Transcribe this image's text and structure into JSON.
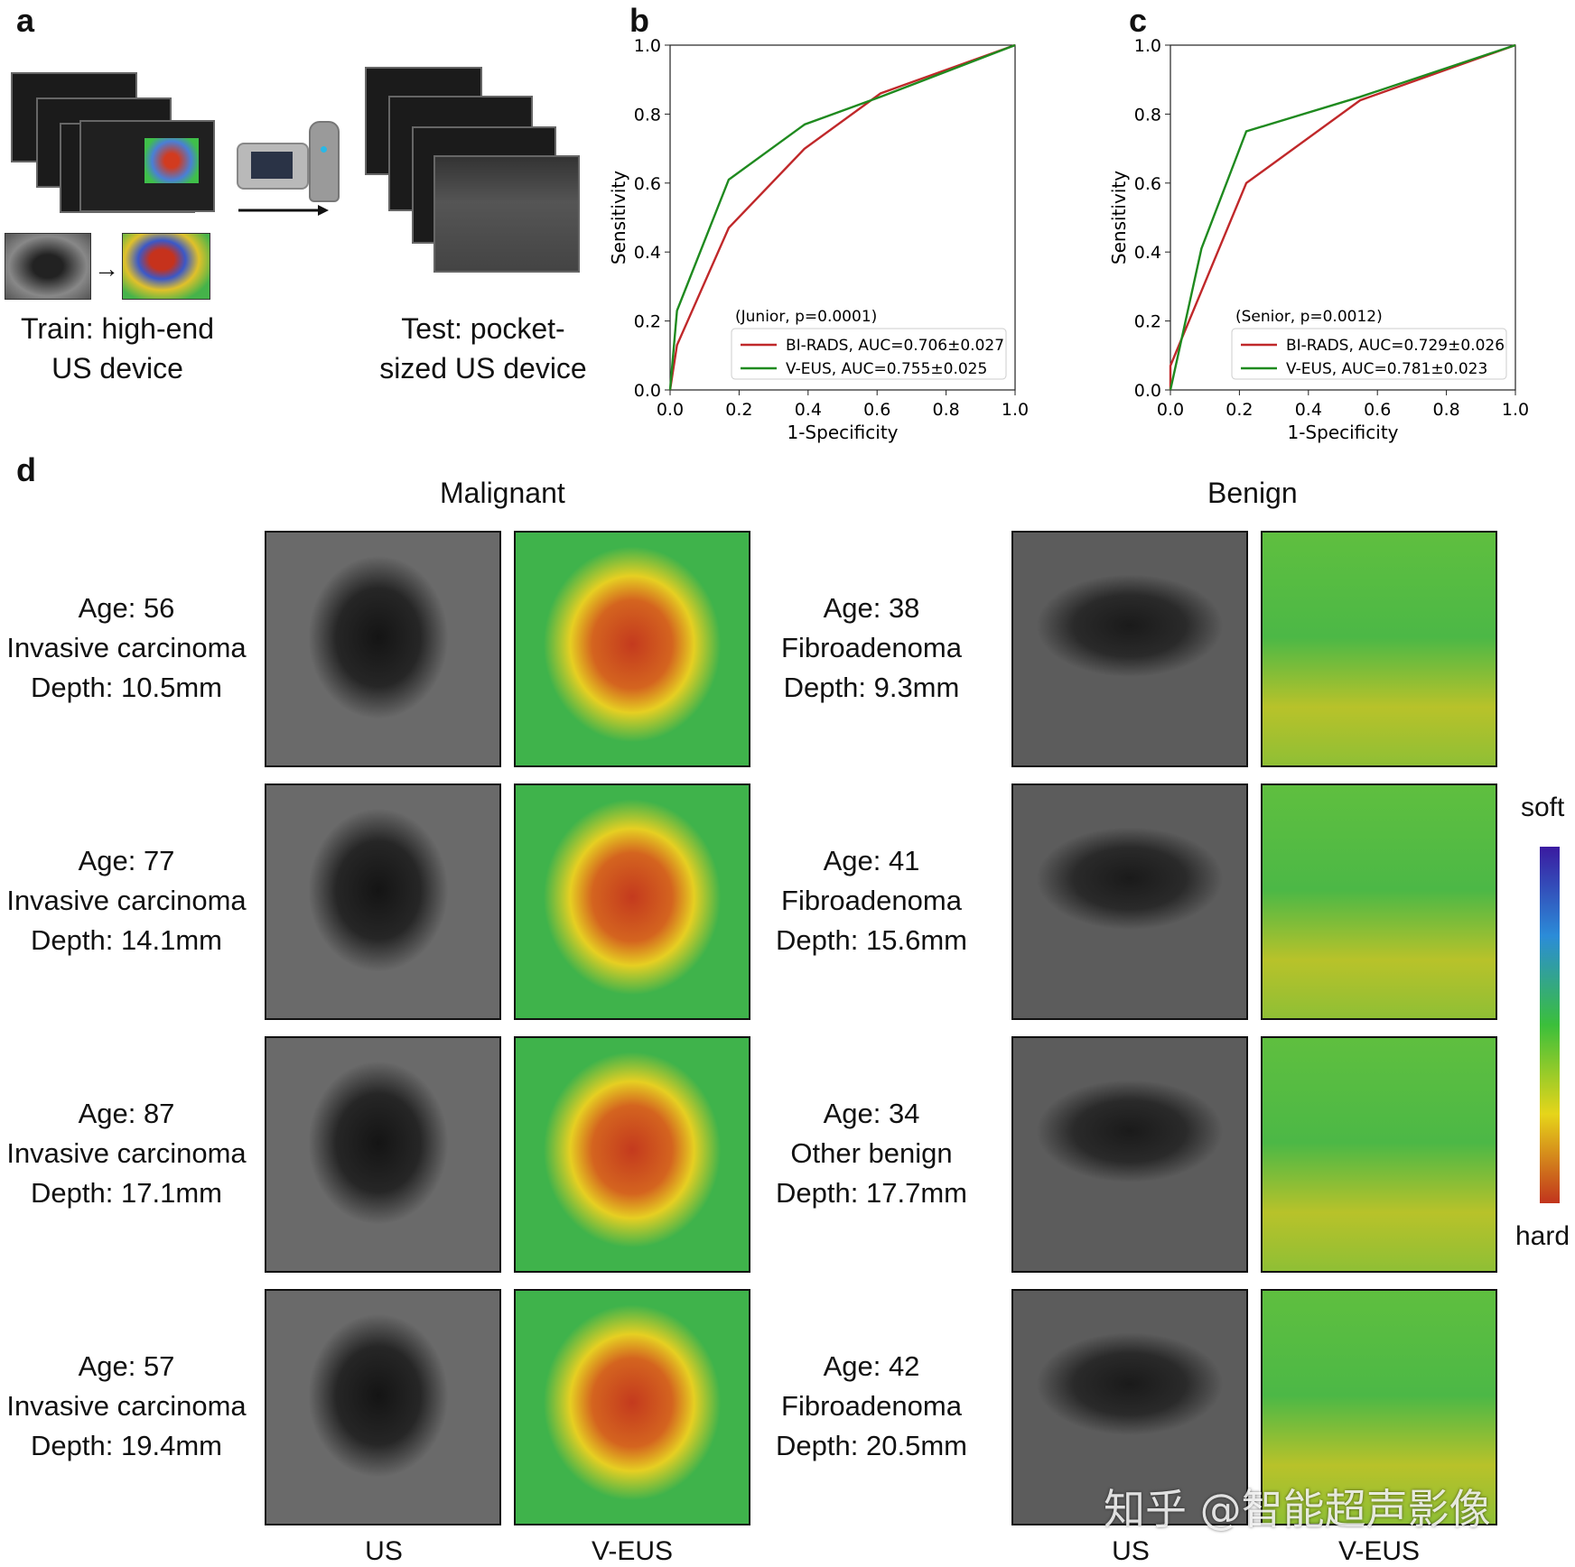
{
  "panels": {
    "a": {
      "letter": "a",
      "train_caption_1": "Train: high-end",
      "train_caption_2": "US device",
      "test_caption_1": "Test: pocket-",
      "test_caption_2": "sized US device",
      "arrow_icon": "right-arrow-icon",
      "device_icon": "handheld-probe-icon"
    },
    "b": {
      "letter": "b"
    },
    "c": {
      "letter": "c"
    },
    "d": {
      "letter": "d",
      "malignant_title": "Malignant",
      "benign_title": "Benign",
      "col_us": "US",
      "col_veus": "V-EUS",
      "colorbar_top": "soft",
      "colorbar_bottom": "hard",
      "colorbar_colors": [
        "#3a1aa0",
        "#2b8cd8",
        "#3bbf3b",
        "#e6d51a",
        "#c1341d"
      ],
      "malignant_cases": [
        {
          "age": "Age: 56",
          "diagnosis": "Invasive carcinoma",
          "depth": "Depth: 10.5mm"
        },
        {
          "age": "Age: 77",
          "diagnosis": "Invasive carcinoma",
          "depth": "Depth: 14.1mm"
        },
        {
          "age": "Age: 87",
          "diagnosis": "Invasive carcinoma",
          "depth": "Depth: 17.1mm"
        },
        {
          "age": "Age: 57",
          "diagnosis": "Invasive carcinoma",
          "depth": "Depth: 19.4mm"
        }
      ],
      "benign_cases": [
        {
          "age": "Age: 38",
          "diagnosis": "Fibroadenoma",
          "depth": "Depth: 9.3mm"
        },
        {
          "age": "Age: 41",
          "diagnosis": "Fibroadenoma",
          "depth": "Depth: 15.6mm"
        },
        {
          "age": "Age: 34",
          "diagnosis": "Other benign",
          "depth": "Depth: 17.7mm"
        },
        {
          "age": "Age: 42",
          "diagnosis": "Fibroadenoma",
          "depth": "Depth: 20.5mm"
        }
      ]
    }
  },
  "watermark": "知乎 @智能超声影像",
  "chart_data": [
    {
      "type": "line",
      "panel": "b",
      "xlabel": "1-Specificity",
      "ylabel": "Sensitivity",
      "xlim": [
        0,
        1
      ],
      "ylim": [
        0,
        1
      ],
      "xticks": [
        "0.0",
        "0.2",
        "0.4",
        "0.6",
        "0.8",
        "1.0"
      ],
      "yticks": [
        "0.0",
        "0.2",
        "0.4",
        "0.6",
        "0.8",
        "1.0"
      ],
      "legend_title": "(Junior, p=0.0001)",
      "legend_position": "lower-right",
      "series": [
        {
          "name": "BI-RADS, AUC=0.706±0.027",
          "color": "#c0282a",
          "x": [
            0,
            0.02,
            0.17,
            0.39,
            0.61,
            1.0
          ],
          "y": [
            0,
            0.13,
            0.47,
            0.7,
            0.86,
            1.0
          ]
        },
        {
          "name": "V-EUS, AUC=0.755±0.025",
          "color": "#1f8a1f",
          "x": [
            0,
            0.02,
            0.17,
            0.39,
            0.61,
            1.0
          ],
          "y": [
            0,
            0.23,
            0.61,
            0.77,
            0.85,
            1.0
          ]
        }
      ]
    },
    {
      "type": "line",
      "panel": "c",
      "xlabel": "1-Specificity",
      "ylabel": "Sensitivity",
      "xlim": [
        0,
        1
      ],
      "ylim": [
        0,
        1
      ],
      "xticks": [
        "0.0",
        "0.2",
        "0.4",
        "0.6",
        "0.8",
        "1.0"
      ],
      "yticks": [
        "0.0",
        "0.2",
        "0.4",
        "0.6",
        "0.8",
        "1.0"
      ],
      "legend_title": "(Senior, p=0.0012)",
      "legend_position": "lower-right",
      "series": [
        {
          "name": "BI-RADS, AUC=0.729±0.026",
          "color": "#c0282a",
          "x": [
            0,
            0.0,
            0.22,
            0.55,
            1.0
          ],
          "y": [
            0,
            0.07,
            0.6,
            0.84,
            1.0
          ]
        },
        {
          "name": "V-EUS, AUC=0.781±0.023",
          "color": "#1f8a1f",
          "x": [
            0,
            0.09,
            0.22,
            0.55,
            1.0
          ],
          "y": [
            0,
            0.41,
            0.75,
            0.85,
            1.0
          ]
        }
      ]
    }
  ]
}
